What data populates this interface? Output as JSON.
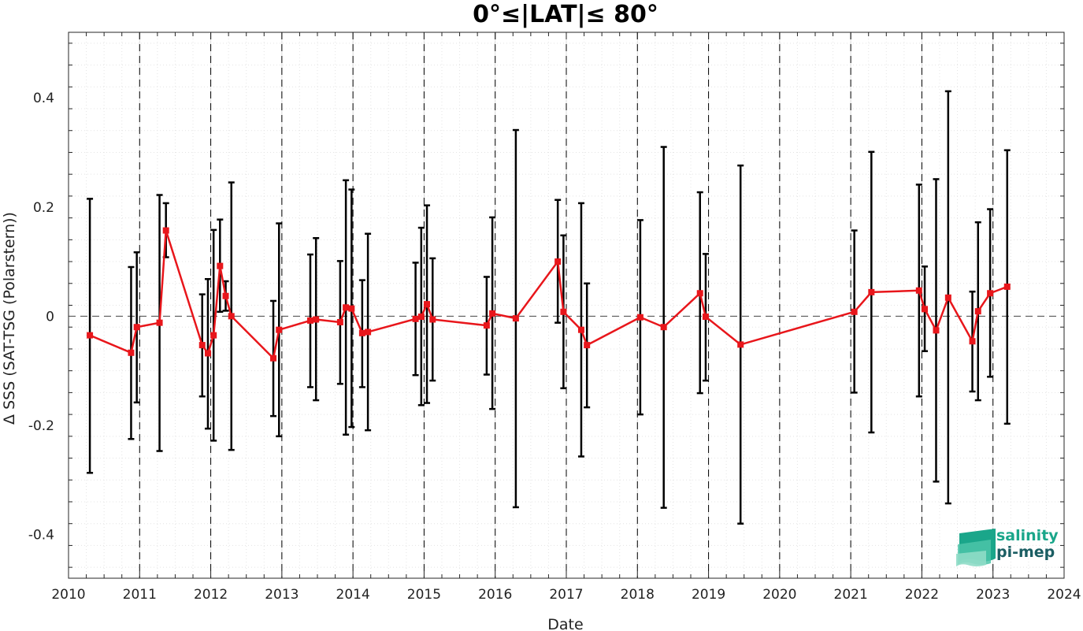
{
  "chart_data": {
    "type": "line",
    "title": "0°≤|LAT|≤ 80°",
    "xlabel": "Date",
    "ylabel": "Δ SSS (SAT-TSG (Polarstern))",
    "xlim": [
      2010,
      2024
    ],
    "ylim": [
      -0.48,
      0.52
    ],
    "x_ticks": [
      "2010",
      "2011",
      "2012",
      "2013",
      "2014",
      "2015",
      "2016",
      "2017",
      "2018",
      "2019",
      "2020",
      "2021",
      "2022",
      "2023",
      "2024"
    ],
    "y_ticks": [
      "-0.4",
      "-0.2",
      "0",
      "0.2",
      "0.4"
    ],
    "y_tick_values": [
      -0.4,
      -0.2,
      0,
      0.2,
      0.4
    ],
    "grid": true,
    "zero_line": true,
    "year_separators": [
      2011,
      2012,
      2013,
      2014,
      2015,
      2016,
      2017,
      2018,
      2019,
      2020,
      2021,
      2022,
      2023
    ],
    "series": [
      {
        "color": "#e8161b",
        "error_color": "#000000",
        "marker": "square",
        "points": [
          {
            "x": 2010.3,
            "y": -0.035,
            "lo": -0.287,
            "hi": 0.215
          },
          {
            "x": 2010.88,
            "y": -0.067,
            "lo": -0.225,
            "hi": 0.09
          },
          {
            "x": 2010.96,
            "y": -0.02,
            "lo": -0.158,
            "hi": 0.117
          },
          {
            "x": 2011.28,
            "y": -0.012,
            "lo": -0.247,
            "hi": 0.222
          },
          {
            "x": 2011.37,
            "y": 0.157,
            "lo": 0.108,
            "hi": 0.207
          },
          {
            "x": 2011.88,
            "y": -0.053,
            "lo": -0.147,
            "hi": 0.04
          },
          {
            "x": 2011.96,
            "y": -0.068,
            "lo": -0.206,
            "hi": 0.068
          },
          {
            "x": 2012.04,
            "y": -0.035,
            "lo": -0.228,
            "hi": 0.158
          },
          {
            "x": 2012.13,
            "y": 0.092,
            "lo": 0.008,
            "hi": 0.177
          },
          {
            "x": 2012.21,
            "y": 0.037,
            "lo": 0.01,
            "hi": 0.064
          },
          {
            "x": 2012.29,
            "y": 0.0,
            "lo": -0.245,
            "hi": 0.245
          },
          {
            "x": 2012.88,
            "y": -0.077,
            "lo": -0.183,
            "hi": 0.028
          },
          {
            "x": 2012.96,
            "y": -0.025,
            "lo": -0.22,
            "hi": 0.17
          },
          {
            "x": 2013.4,
            "y": -0.008,
            "lo": -0.13,
            "hi": 0.113
          },
          {
            "x": 2013.48,
            "y": -0.006,
            "lo": -0.154,
            "hi": 0.143
          },
          {
            "x": 2013.82,
            "y": -0.011,
            "lo": -0.124,
            "hi": 0.101
          },
          {
            "x": 2013.9,
            "y": 0.016,
            "lo": -0.217,
            "hi": 0.249
          },
          {
            "x": 2013.98,
            "y": 0.014,
            "lo": -0.203,
            "hi": 0.232
          },
          {
            "x": 2014.13,
            "y": -0.031,
            "lo": -0.13,
            "hi": 0.066
          },
          {
            "x": 2014.21,
            "y": -0.029,
            "lo": -0.209,
            "hi": 0.151
          },
          {
            "x": 2014.88,
            "y": -0.005,
            "lo": -0.108,
            "hi": 0.098
          },
          {
            "x": 2014.96,
            "y": -0.001,
            "lo": -0.163,
            "hi": 0.162
          },
          {
            "x": 2015.04,
            "y": 0.022,
            "lo": -0.159,
            "hi": 0.203
          },
          {
            "x": 2015.12,
            "y": -0.006,
            "lo": -0.118,
            "hi": 0.106
          },
          {
            "x": 2015.88,
            "y": -0.017,
            "lo": -0.107,
            "hi": 0.072
          },
          {
            "x": 2015.96,
            "y": 0.005,
            "lo": -0.17,
            "hi": 0.181
          },
          {
            "x": 2016.29,
            "y": -0.004,
            "lo": -0.35,
            "hi": 0.341
          },
          {
            "x": 2016.88,
            "y": 0.1,
            "lo": -0.012,
            "hi": 0.213
          },
          {
            "x": 2016.96,
            "y": 0.008,
            "lo": -0.132,
            "hi": 0.148
          },
          {
            "x": 2017.21,
            "y": -0.025,
            "lo": -0.257,
            "hi": 0.207
          },
          {
            "x": 2017.29,
            "y": -0.053,
            "lo": -0.167,
            "hi": 0.06
          },
          {
            "x": 2018.04,
            "y": -0.002,
            "lo": -0.18,
            "hi": 0.176
          },
          {
            "x": 2018.37,
            "y": -0.02,
            "lo": -0.351,
            "hi": 0.31
          },
          {
            "x": 2018.88,
            "y": 0.042,
            "lo": -0.141,
            "hi": 0.227
          },
          {
            "x": 2018.96,
            "y": -0.001,
            "lo": -0.118,
            "hi": 0.114
          },
          {
            "x": 2019.45,
            "y": -0.052,
            "lo": -0.38,
            "hi": 0.276
          },
          {
            "x": 2021.05,
            "y": 0.008,
            "lo": -0.14,
            "hi": 0.157
          },
          {
            "x": 2021.29,
            "y": 0.044,
            "lo": -0.213,
            "hi": 0.301
          },
          {
            "x": 2021.96,
            "y": 0.047,
            "lo": -0.147,
            "hi": 0.241
          },
          {
            "x": 2022.04,
            "y": 0.013,
            "lo": -0.064,
            "hi": 0.091
          },
          {
            "x": 2022.2,
            "y": -0.026,
            "lo": -0.303,
            "hi": 0.251
          },
          {
            "x": 2022.37,
            "y": 0.034,
            "lo": -0.343,
            "hi": 0.412
          },
          {
            "x": 2022.71,
            "y": -0.046,
            "lo": -0.138,
            "hi": 0.045
          },
          {
            "x": 2022.79,
            "y": 0.009,
            "lo": -0.154,
            "hi": 0.172
          },
          {
            "x": 2022.96,
            "y": 0.042,
            "lo": -0.111,
            "hi": 0.196
          },
          {
            "x": 2023.2,
            "y": 0.054,
            "lo": -0.197,
            "hi": 0.304
          }
        ]
      }
    ]
  },
  "logo": {
    "line1": "salinity",
    "line2": "pi-mep",
    "color1": "#1aa68a",
    "color2": "#1b5e63"
  }
}
